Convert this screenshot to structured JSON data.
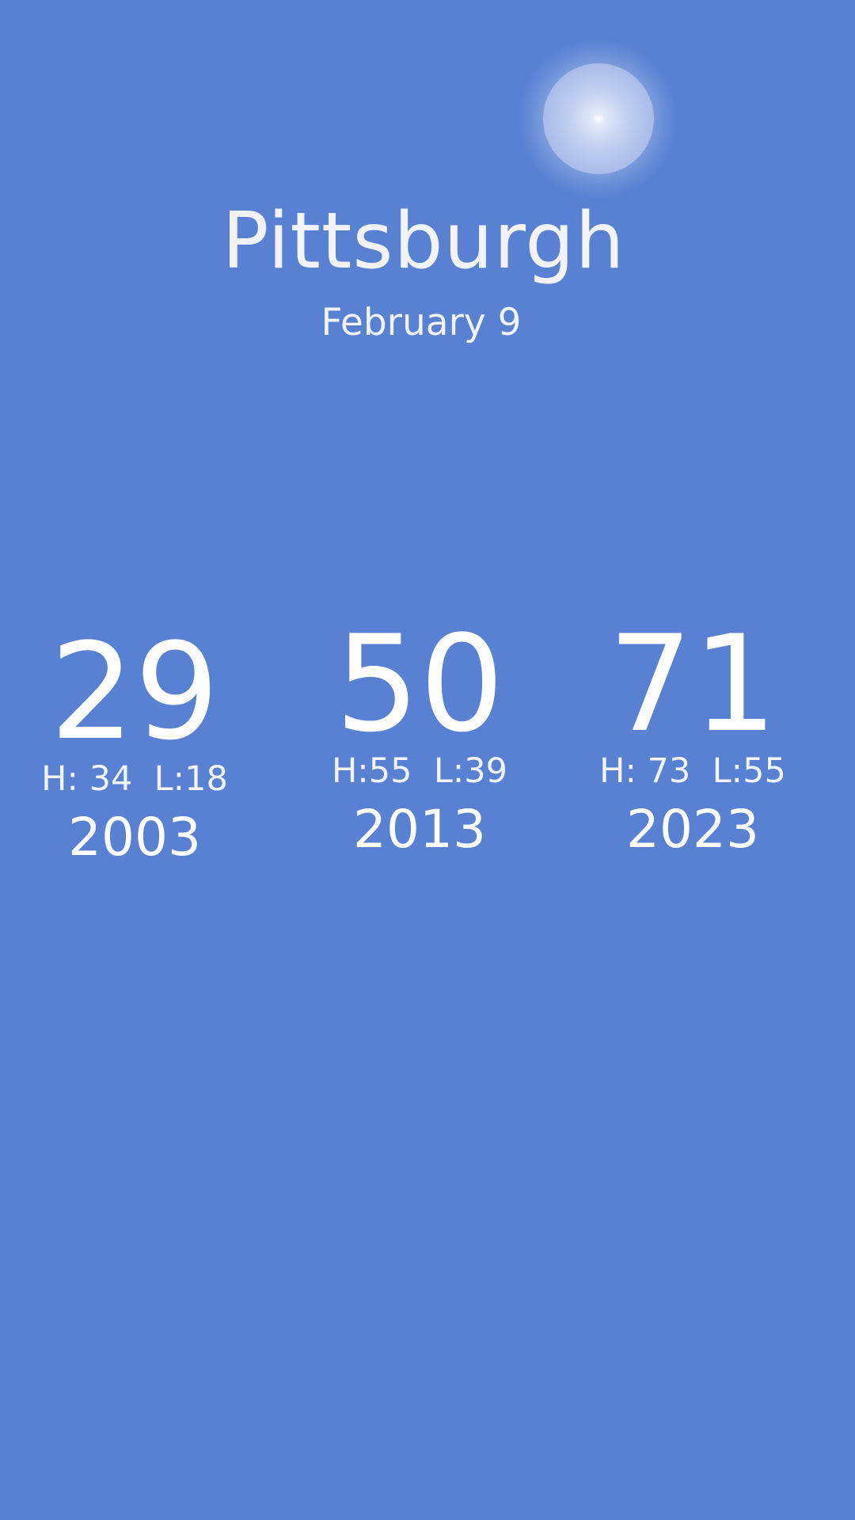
{
  "header": {
    "city": "Pittsburgh",
    "date": "February 9"
  },
  "icons": {
    "weather": "sun-icon"
  },
  "colors": {
    "background": "#5881d3",
    "text": "#ffffff"
  },
  "years": [
    {
      "temp": "29",
      "hl": "H: 34  L:18",
      "year": "2003"
    },
    {
      "temp": "50",
      "hl": "H:55  L:39",
      "year": "2013"
    },
    {
      "temp": "71",
      "hl": "H: 73  L:55",
      "year": "2023"
    }
  ]
}
